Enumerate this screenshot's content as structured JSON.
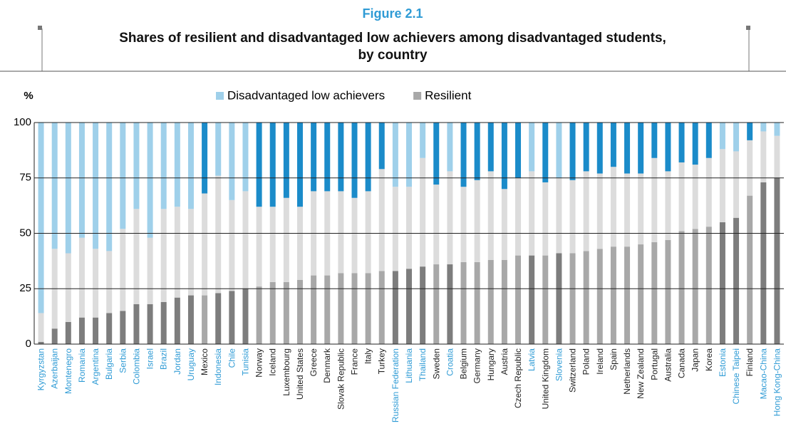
{
  "chart_data": {
    "type": "stacked-bar",
    "figure_label": "Figure 2.1",
    "title": [
      "Shares of resilient and disadvantaged low achievers among disadvantaged students,",
      "by country"
    ],
    "y_label": "%",
    "categories": [
      "Kyrgyzstan",
      "Azerbaijan",
      "Montenegro",
      "Romania",
      "Argentina",
      "Bulgaria",
      "Serbia",
      "Colombia",
      "Israel",
      "Brazil",
      "Jordan",
      "Uruguay",
      "Mexico",
      "Indonesia",
      "Chile",
      "Tunisia",
      "Norway",
      "Iceland",
      "Luxembourg",
      "United States",
      "Greece",
      "Denmark",
      "Slovak Republic",
      "France",
      "Italy",
      "Turkey",
      "Russian Federation",
      "Lithuania",
      "Thailand",
      "Sweden",
      "Croatia",
      "Belgium",
      "Germany",
      "Hungary",
      "Austria",
      "Czech Republic",
      "Latvia",
      "United Kingdom",
      "Slovenia",
      "Switzerland",
      "Poland",
      "Ireland",
      "Spain",
      "Netherlands",
      "New Zealand",
      "Portugal",
      "Australia",
      "Canada",
      "Japan",
      "Korea",
      "Estonia",
      "Chinese Taipei",
      "Finland",
      "Macao-China",
      "Hong Kong-China"
    ],
    "label_colors": [
      "#2f9bd5",
      "#2f9bd5",
      "#2f9bd5",
      "#2f9bd5",
      "#2f9bd5",
      "#2f9bd5",
      "#2f9bd5",
      "#2f9bd5",
      "#2f9bd5",
      "#2f9bd5",
      "#2f9bd5",
      "#2f9bd5",
      "#222222",
      "#2f9bd5",
      "#2f9bd5",
      "#2f9bd5",
      "#222222",
      "#222222",
      "#222222",
      "#222222",
      "#222222",
      "#222222",
      "#222222",
      "#222222",
      "#222222",
      "#222222",
      "#2f9bd5",
      "#2f9bd5",
      "#2f9bd5",
      "#222222",
      "#2f9bd5",
      "#222222",
      "#222222",
      "#222222",
      "#222222",
      "#222222",
      "#2f9bd5",
      "#222222",
      "#2f9bd5",
      "#222222",
      "#222222",
      "#222222",
      "#222222",
      "#222222",
      "#222222",
      "#222222",
      "#222222",
      "#222222",
      "#222222",
      "#222222",
      "#2f9bd5",
      "#2f9bd5",
      "#222222",
      "#2f9bd5",
      "#2f9bd5"
    ],
    "series": [
      {
        "name": "Resilient",
        "color": "#a8a8a8",
        "values": [
          1,
          7,
          10,
          12,
          12,
          14,
          15,
          18,
          18,
          19,
          21,
          22,
          22,
          23,
          24,
          25,
          26,
          28,
          28,
          29,
          31,
          31,
          32,
          32,
          32,
          33,
          33,
          34,
          35,
          36,
          36,
          37,
          37,
          38,
          38,
          40,
          40,
          40,
          41,
          41,
          42,
          43,
          44,
          44,
          45,
          46,
          47,
          51,
          52,
          53,
          55,
          57,
          67,
          73,
          75
        ],
        "colors": [
          "#7d7d7d",
          "#7d7d7d",
          "#7d7d7d",
          "#7d7d7d",
          "#7d7d7d",
          "#7d7d7d",
          "#7d7d7d",
          "#7d7d7d",
          "#7d7d7d",
          "#7d7d7d",
          "#7d7d7d",
          "#7d7d7d",
          "#a8a8a8",
          "#7d7d7d",
          "#7d7d7d",
          "#7d7d7d",
          "#a8a8a8",
          "#a8a8a8",
          "#a8a8a8",
          "#a8a8a8",
          "#a8a8a8",
          "#a8a8a8",
          "#a8a8a8",
          "#a8a8a8",
          "#a8a8a8",
          "#a8a8a8",
          "#7d7d7d",
          "#7d7d7d",
          "#7d7d7d",
          "#a8a8a8",
          "#7d7d7d",
          "#a8a8a8",
          "#a8a8a8",
          "#a8a8a8",
          "#a8a8a8",
          "#a8a8a8",
          "#7d7d7d",
          "#a8a8a8",
          "#7d7d7d",
          "#a8a8a8",
          "#a8a8a8",
          "#a8a8a8",
          "#a8a8a8",
          "#a8a8a8",
          "#a8a8a8",
          "#a8a8a8",
          "#a8a8a8",
          "#a8a8a8",
          "#a8a8a8",
          "#a8a8a8",
          "#7d7d7d",
          "#7d7d7d",
          "#a8a8a8",
          "#7d7d7d",
          "#7d7d7d"
        ]
      },
      {
        "color": "#dcdcdc",
        "values": [
          13,
          36,
          31,
          36,
          31,
          28,
          37,
          43,
          30,
          42,
          41,
          39,
          46,
          53,
          41,
          44,
          36,
          34,
          38,
          33,
          38,
          38,
          37,
          34,
          37,
          46,
          38,
          37,
          49,
          36,
          42,
          34,
          37,
          40,
          32,
          35,
          38,
          33,
          34,
          33,
          36,
          34,
          36,
          33,
          32,
          38,
          31,
          31,
          29,
          31,
          33,
          30,
          25,
          23,
          19
        ]
      },
      {
        "name": "Disadvantaged low achievers",
        "color": "#9fd0ea",
        "values": [
          86,
          57,
          59,
          52,
          57,
          58,
          48,
          39,
          52,
          39,
          38,
          39,
          32,
          24,
          35,
          31,
          38,
          38,
          34,
          38,
          31,
          31,
          31,
          34,
          31,
          21,
          29,
          29,
          16,
          28,
          22,
          29,
          26,
          22,
          30,
          25,
          22,
          27,
          25,
          26,
          22,
          23,
          20,
          23,
          23,
          16,
          22,
          18,
          19,
          16,
          12,
          13,
          8,
          4,
          6
        ],
        "colors": [
          "#9fd0ea",
          "#9fd0ea",
          "#9fd0ea",
          "#9fd0ea",
          "#9fd0ea",
          "#9fd0ea",
          "#9fd0ea",
          "#9fd0ea",
          "#9fd0ea",
          "#9fd0ea",
          "#9fd0ea",
          "#9fd0ea",
          "#1b8bc9",
          "#9fd0ea",
          "#9fd0ea",
          "#9fd0ea",
          "#1b8bc9",
          "#1b8bc9",
          "#1b8bc9",
          "#1b8bc9",
          "#1b8bc9",
          "#1b8bc9",
          "#1b8bc9",
          "#1b8bc9",
          "#1b8bc9",
          "#1b8bc9",
          "#9fd0ea",
          "#9fd0ea",
          "#9fd0ea",
          "#1b8bc9",
          "#9fd0ea",
          "#1b8bc9",
          "#1b8bc9",
          "#1b8bc9",
          "#1b8bc9",
          "#1b8bc9",
          "#9fd0ea",
          "#1b8bc9",
          "#9fd0ea",
          "#1b8bc9",
          "#1b8bc9",
          "#1b8bc9",
          "#1b8bc9",
          "#1b8bc9",
          "#1b8bc9",
          "#1b8bc9",
          "#1b8bc9",
          "#1b8bc9",
          "#1b8bc9",
          "#1b8bc9",
          "#9fd0ea",
          "#9fd0ea",
          "#1b8bc9",
          "#9fd0ea",
          "#9fd0ea"
        ]
      }
    ],
    "ylim": [
      0,
      100
    ],
    "yticks": [
      0,
      25,
      50,
      75,
      100
    ],
    "grid": true
  }
}
